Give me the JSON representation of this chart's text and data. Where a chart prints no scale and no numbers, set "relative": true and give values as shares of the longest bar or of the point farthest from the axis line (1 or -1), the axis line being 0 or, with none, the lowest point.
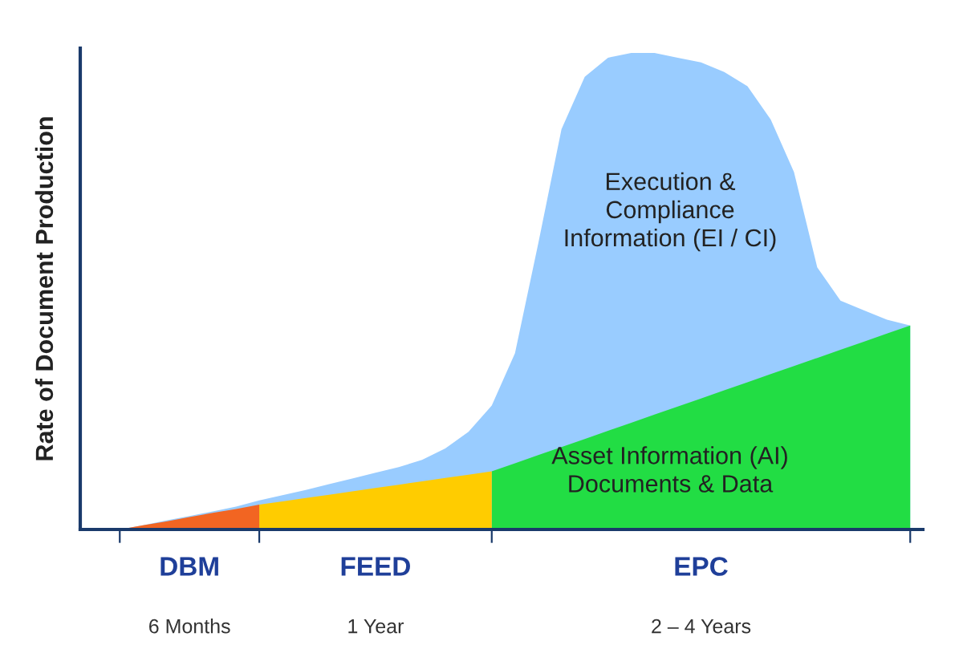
{
  "chart_data": {
    "type": "area",
    "relative": true,
    "ylabel": "Rate of Document Production",
    "categories": [
      null,
      null,
      null,
      null,
      null,
      null,
      null,
      null,
      null,
      null,
      null,
      null,
      null,
      null,
      null,
      null,
      null,
      null,
      null,
      null,
      null,
      null,
      null,
      null,
      null,
      null,
      null,
      null,
      null,
      null,
      null,
      null,
      null,
      null,
      null
    ],
    "series": [
      {
        "name": "Execution &\nCompliance\nInformation (EI / CI)",
        "color": "#99ccff",
        "values": [
          0,
          0.009,
          0.019,
          0.028,
          0.038,
          0.048,
          0.061,
          0.072,
          0.083,
          0.095,
          0.107,
          0.119,
          0.131,
          0.146,
          0.17,
          0.205,
          0.26,
          0.37,
          0.6,
          0.84,
          0.95,
          0.99,
          1.0,
          1.0,
          0.99,
          0.98,
          0.96,
          0.93,
          0.86,
          0.75,
          0.55,
          0.48,
          0.46,
          0.44,
          0.428
        ]
      },
      {
        "name": "Asset Information (AI)\nDocuments & Data",
        "color": "#22dd44",
        "values": [
          null,
          null,
          null,
          null,
          null,
          null,
          null,
          null,
          null,
          null,
          null,
          null,
          null,
          null,
          null,
          null,
          0.122,
          0.139,
          0.156,
          0.173,
          0.19,
          0.207,
          0.224,
          0.241,
          0.258,
          0.275,
          0.292,
          0.309,
          0.326,
          0.343,
          0.36,
          0.377,
          0.394,
          0.411,
          0.428
        ]
      },
      {
        "color": "#ffcc00",
        "values": [
          null,
          null,
          null,
          null,
          null,
          null,
          0.052,
          0.059,
          0.066,
          0.073,
          0.08,
          0.087,
          0.094,
          0.101,
          0.108,
          0.115,
          0.122,
          null,
          null,
          null,
          null,
          null,
          null,
          null,
          null,
          null,
          null,
          null,
          null,
          null,
          null,
          null,
          null,
          null,
          null
        ]
      },
      {
        "color": "#f26522",
        "values": [
          0,
          0.009,
          0.017,
          0.026,
          0.035,
          0.043,
          0.052,
          null,
          null,
          null,
          null,
          null,
          null,
          null,
          null,
          null,
          null,
          null,
          null,
          null,
          null,
          null,
          null,
          null,
          null,
          null,
          null,
          null,
          null,
          null,
          null,
          null,
          null,
          null,
          null
        ]
      }
    ],
    "annotations": [
      "DBM",
      "FEED",
      "EPC",
      "6 Months",
      "1 Year",
      "2 – 4 Years"
    ],
    "legend": false,
    "grid": false
  }
}
